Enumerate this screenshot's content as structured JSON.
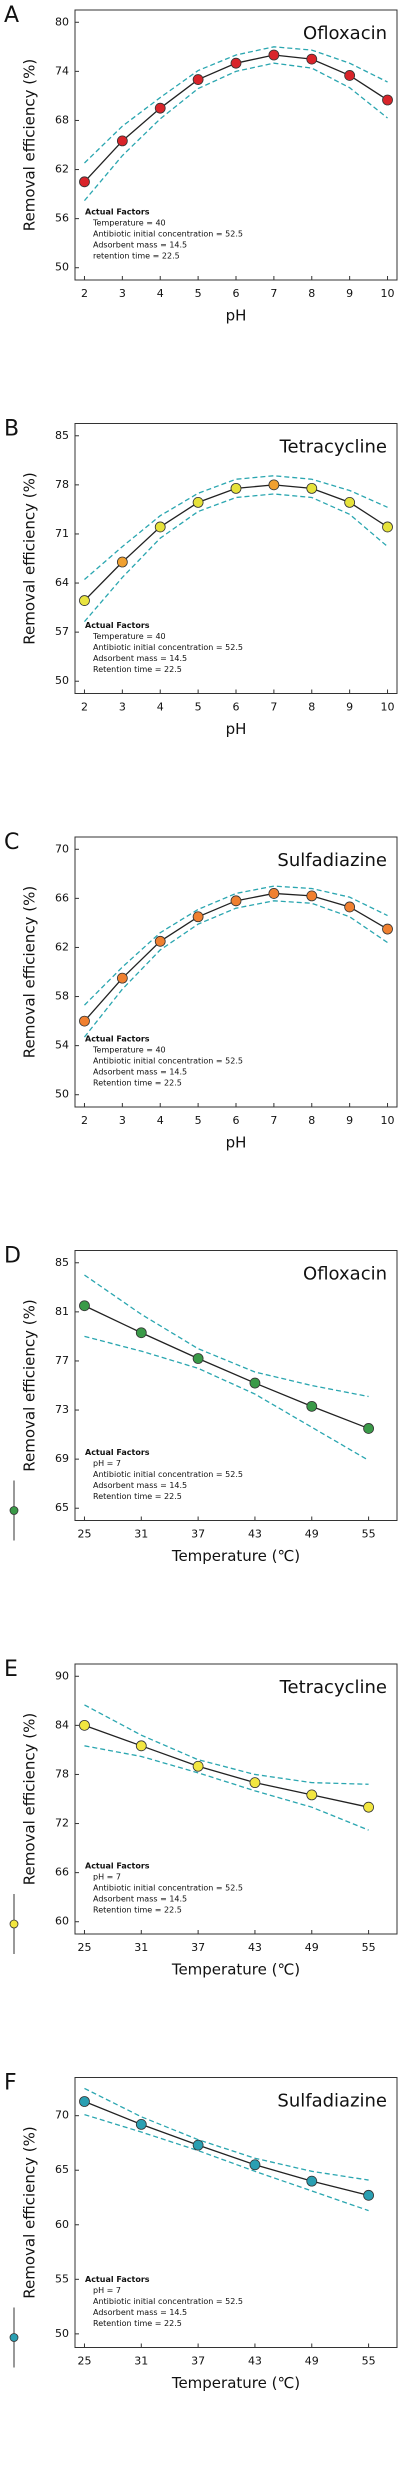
{
  "chart_data": [
    {
      "type": "line",
      "panel_label": "A",
      "title": "Ofloxacin",
      "xlabel": "pH",
      "ylabel": "Removal efficiency   (%)",
      "x": [
        2,
        3,
        4,
        5,
        6,
        7,
        8,
        9,
        10
      ],
      "values": [
        60.5,
        65.5,
        69.5,
        73,
        75,
        76,
        75.5,
        73.5,
        70.5
      ],
      "ci_upper": [
        62.8,
        67.3,
        70.8,
        74.1,
        76,
        77,
        76.6,
        75,
        72.7
      ],
      "ci_lower": [
        58.2,
        63.7,
        68.2,
        71.9,
        74,
        75,
        74.4,
        72,
        68.3
      ],
      "point_colors": [
        "#d9242a",
        "#d9242a",
        "#d9242a",
        "#d9242a",
        "#d9242a",
        "#d9242a",
        "#d9242a",
        "#d9242a",
        "#d9242a"
      ],
      "line_color": "#222222",
      "ci_color": "#2aa6b0",
      "xlim": [
        1.75,
        10.25
      ],
      "xticks": [
        2,
        3,
        4,
        5,
        6,
        7,
        8,
        9,
        10
      ],
      "ylim": [
        48.5,
        81.5
      ],
      "yticks": [
        50,
        56,
        62,
        68,
        74,
        80
      ],
      "annotations": [
        "Actual Factors",
        "Temperature = 40",
        "Antibiotic initial concentration = 52.5",
        "Adsorbent mass = 14.5",
        "retention time = 22.5"
      ]
    },
    {
      "type": "line",
      "panel_label": "B",
      "title": "Tetracycline",
      "xlabel": "pH",
      "ylabel": "Removal efficiency   (%)",
      "x": [
        2,
        3,
        4,
        5,
        6,
        7,
        8,
        9,
        10
      ],
      "values": [
        61.5,
        67,
        72,
        75.5,
        77.5,
        78,
        77.5,
        75.5,
        72
      ],
      "ci_upper": [
        64.5,
        69.2,
        73.6,
        76.8,
        78.8,
        79.3,
        78.8,
        77.2,
        74.8
      ],
      "ci_lower": [
        58.5,
        64.8,
        70.4,
        74.2,
        76.2,
        76.7,
        76.2,
        73.8,
        69.2
      ],
      "point_colors": [
        "#e9e440",
        "#f0a030",
        "#e6e23a",
        "#e6e23a",
        "#e6e23a",
        "#f0a030",
        "#e6e23a",
        "#e6e23a",
        "#e6e23a"
      ],
      "line_color": "#222222",
      "ci_color": "#2aa6b0",
      "xlim": [
        1.75,
        10.25
      ],
      "xticks": [
        2,
        3,
        4,
        5,
        6,
        7,
        8,
        9,
        10
      ],
      "ylim": [
        48.25,
        86.75
      ],
      "yticks": [
        50,
        57,
        64,
        71,
        78,
        85
      ],
      "annotations": [
        "Actual Factors",
        "Temperature = 40",
        "Antibiotic initial concentration = 52.5",
        "Adsorbent mass = 14.5",
        "Retention time = 22.5"
      ]
    },
    {
      "type": "line",
      "panel_label": "C",
      "title": "Sulfadiazine",
      "xlabel": "pH",
      "ylabel": "Removal efficiency   (%)",
      "x": [
        2,
        3,
        4,
        5,
        6,
        7,
        8,
        9,
        10
      ],
      "values": [
        56,
        59.5,
        62.5,
        64.5,
        65.8,
        66.4,
        66.2,
        65.3,
        63.5
      ],
      "ci_upper": [
        57.3,
        60.4,
        63.2,
        65.1,
        66.4,
        67,
        66.8,
        66.1,
        64.6
      ],
      "ci_lower": [
        54.7,
        58.6,
        61.8,
        63.9,
        65.2,
        65.8,
        65.6,
        64.5,
        62.4
      ],
      "point_colors": [
        "#f08030",
        "#f08030",
        "#f08030",
        "#f08030",
        "#f08030",
        "#f08030",
        "#f08030",
        "#f08030",
        "#f08030"
      ],
      "line_color": "#222222",
      "ci_color": "#2aa6b0",
      "xlim": [
        1.75,
        10.25
      ],
      "xticks": [
        2,
        3,
        4,
        5,
        6,
        7,
        8,
        9,
        10
      ],
      "ylim": [
        49,
        71
      ],
      "yticks": [
        50,
        54,
        58,
        62,
        66,
        70
      ],
      "annotations": [
        "Actual Factors",
        "Temperature = 40",
        "Antibiotic initial concentration = 52.5",
        "Adsorbent mass = 14.5",
        "Retention time = 22.5"
      ]
    },
    {
      "type": "line",
      "panel_label": "D",
      "title": "Ofloxacin",
      "xlabel": "Temperature (℃)",
      "ylabel": "Removal efficiency   (%)",
      "x": [
        25,
        31,
        37,
        43,
        49,
        55
      ],
      "values": [
        81.5,
        79.3,
        77.2,
        75.2,
        73.3,
        71.5
      ],
      "ci_upper": [
        84,
        80.8,
        78,
        76.1,
        75,
        74.1
      ],
      "ci_lower": [
        79,
        77.8,
        76.4,
        74.3,
        71.6,
        68.9
      ],
      "point_colors": [
        "#3a9a48",
        "#3a9a48",
        "#3a9a48",
        "#3a9a48",
        "#3a9a48",
        "#3a9a48"
      ],
      "line_color": "#222222",
      "ci_color": "#2aa6b0",
      "xlim": [
        24,
        58
      ],
      "xticks": [
        25,
        31,
        37,
        43,
        49,
        55
      ],
      "ylim": [
        64,
        86
      ],
      "yticks": [
        65,
        69,
        73,
        77,
        81,
        85
      ],
      "annotations": [
        "Actual Factors",
        "pH = 7",
        "Antibiotic initial concentration = 52.5",
        "Adsorbent mass = 14.5",
        "Retention time = 22.5"
      ]
    },
    {
      "type": "line",
      "panel_label": "E",
      "title": "Tetracycline",
      "xlabel": "Temperature (℃)",
      "ylabel": "Removal efficiency   (%)",
      "x": [
        25,
        31,
        37,
        43,
        49,
        55
      ],
      "values": [
        84,
        81.5,
        79,
        77,
        75.5,
        74
      ],
      "ci_upper": [
        86.5,
        82.8,
        79.8,
        78,
        77,
        76.8
      ],
      "ci_lower": [
        81.5,
        80.2,
        78.2,
        76,
        74,
        71.2
      ],
      "point_colors": [
        "#f2e640",
        "#f2e640",
        "#f2e640",
        "#f2e640",
        "#f2e640",
        "#f2e640"
      ],
      "line_color": "#222222",
      "ci_color": "#2aa6b0",
      "xlim": [
        24,
        58
      ],
      "xticks": [
        25,
        31,
        37,
        43,
        49,
        55
      ],
      "ylim": [
        58.5,
        91.5
      ],
      "yticks": [
        60,
        66,
        72,
        78,
        84,
        90
      ],
      "annotations": [
        "Actual Factors",
        "pH = 7",
        "Antibiotic initial concentration = 52.5",
        "Adsorbent mass = 14.5",
        "Retention time = 22.5"
      ]
    },
    {
      "type": "line",
      "panel_label": "F",
      "title": "Sulfadiazine",
      "xlabel": "Temperature (℃)",
      "ylabel": "Removal efficiency   (%)",
      "x": [
        25,
        31,
        37,
        43,
        49,
        55
      ],
      "values": [
        71.3,
        69.2,
        67.3,
        65.5,
        64,
        62.7
      ],
      "ci_upper": [
        72.5,
        69.9,
        67.8,
        66.1,
        64.9,
        64.1
      ],
      "ci_lower": [
        70.1,
        68.5,
        66.8,
        64.9,
        63.1,
        61.3
      ],
      "point_colors": [
        "#2a9fb2",
        "#2a9fb2",
        "#2a9fb2",
        "#2a9fb2",
        "#2a9fb2",
        "#2a9fb2"
      ],
      "line_color": "#222222",
      "ci_color": "#2aa6b0",
      "xlim": [
        24,
        58
      ],
      "xticks": [
        25,
        31,
        37,
        43,
        49,
        55
      ],
      "ylim": [
        48.75,
        73.5
      ],
      "yticks": [
        50,
        55,
        60,
        65,
        70
      ],
      "annotations": [
        "Actual Factors",
        "pH = 7",
        "Antibiotic initial concentration = 52.5",
        "Adsorbent mass = 14.5",
        "Retention time = 22.5"
      ]
    }
  ]
}
